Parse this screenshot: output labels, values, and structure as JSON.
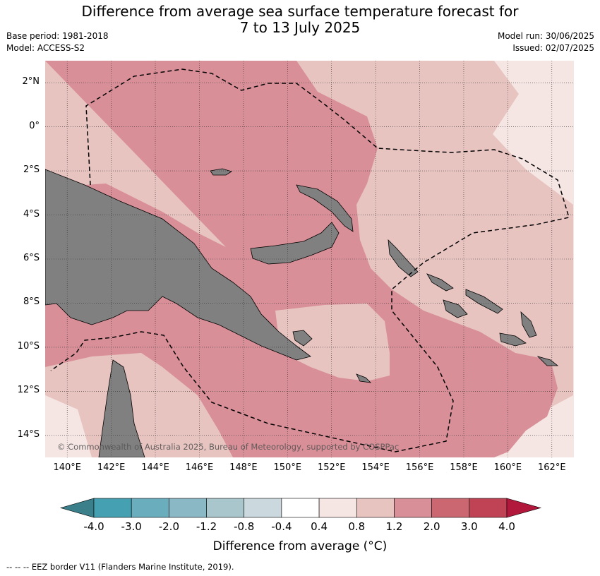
{
  "title_line1": "Difference from average sea surface temperature forecast for",
  "title_line2": "7 to 13 July 2025",
  "meta_left": [
    "Base period: 1981-2018",
    "Model: ACCESS-S2"
  ],
  "meta_right": [
    "Model run: 30/06/2025",
    "Issued: 02/07/2025"
  ],
  "map": {
    "lon_range": [
      139,
      163
    ],
    "lat_range": [
      -15,
      3
    ],
    "lat_ticks": [
      {
        "v": 2,
        "label": "2°N"
      },
      {
        "v": 0,
        "label": "0°"
      },
      {
        "v": -2,
        "label": "2°S"
      },
      {
        "v": -4,
        "label": "4°S"
      },
      {
        "v": -6,
        "label": "6°S"
      },
      {
        "v": -8,
        "label": "8°S"
      },
      {
        "v": -10,
        "label": "10°S"
      },
      {
        "v": -12,
        "label": "12°S"
      },
      {
        "v": -14,
        "label": "14°S"
      }
    ],
    "lon_ticks": [
      {
        "v": 140,
        "label": "140°E"
      },
      {
        "v": 142,
        "label": "142°E"
      },
      {
        "v": 144,
        "label": "144°E"
      },
      {
        "v": 146,
        "label": "146°E"
      },
      {
        "v": 148,
        "label": "148°E"
      },
      {
        "v": 150,
        "label": "150°E"
      },
      {
        "v": 152,
        "label": "152°E"
      },
      {
        "v": 154,
        "label": "154°E"
      },
      {
        "v": 156,
        "label": "156°E"
      },
      {
        "v": 158,
        "label": "158°E"
      },
      {
        "v": 160,
        "label": "160°E"
      },
      {
        "v": 162,
        "label": "162°E"
      }
    ],
    "land_color": "#808080",
    "copyright": "© Commonwealth of Australia 2025, Bureau of Meteorology, supported by COSPPac"
  },
  "colorbar": {
    "extend_low_color": "#3a7f8a",
    "extend_high_color": "#b2183b",
    "colors": [
      "#45a0b1",
      "#6aaebe",
      "#8ab8c4",
      "#a8c6cb",
      "#cbd8dd",
      "#ffffff",
      "#f5e6e4",
      "#e8c4c1",
      "#d88f97",
      "#ca6771",
      "#bf4354"
    ],
    "ticks": [
      "-4.0",
      "-3.0",
      "-2.0",
      "-1.2",
      "-0.8",
      "-0.4",
      "0.4",
      "0.8",
      "1.2",
      "2.0",
      "3.0",
      "4.0"
    ],
    "label": "Difference from average (°C)"
  },
  "footer": "-- -- -- EEZ border V11 (Flanders Marine Institute, 2019)."
}
